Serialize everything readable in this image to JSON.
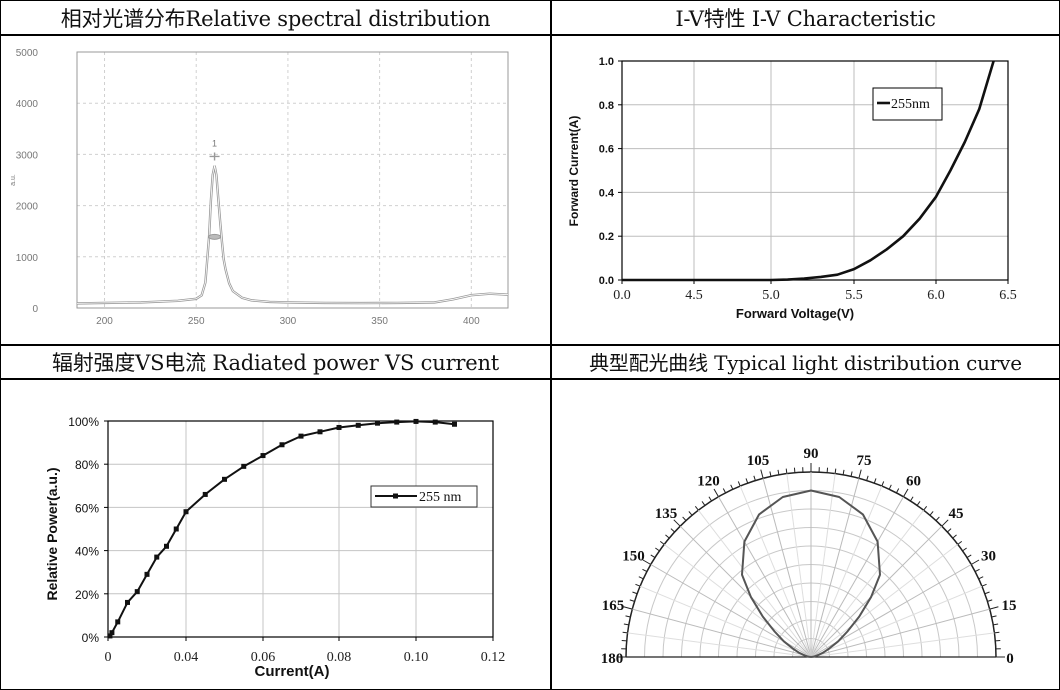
{
  "headers": {
    "spectral": "相对光谱分布Relative spectral distribution",
    "iv": "I-V特性 I-V Characteristic",
    "power": "辐射强度VS电流 Radiated power VS current",
    "polar": "典型配光曲线 Typical light distribution curve"
  },
  "chart_data": [
    {
      "type": "line",
      "ylabel": "a.u.",
      "xlim": [
        185,
        420
      ],
      "ylim": [
        0,
        5000
      ],
      "x_ticks": [
        200,
        250,
        300,
        350,
        400
      ],
      "y_ticks": [
        0,
        1000,
        2000,
        3000,
        4000,
        5000
      ],
      "annotation": "1",
      "grid": true,
      "series": [
        {
          "x": [
            185,
            200,
            220,
            240,
            250,
            253,
            255,
            257,
            258,
            259,
            260,
            261,
            262,
            263,
            264,
            265,
            266,
            268,
            270,
            275,
            280,
            290,
            300,
            320,
            340,
            360,
            380,
            390,
            400,
            410,
            420
          ],
          "values": [
            90,
            100,
            110,
            140,
            180,
            250,
            500,
            1400,
            2100,
            2600,
            2780,
            2600,
            2150,
            1700,
            1300,
            950,
            750,
            480,
            330,
            200,
            150,
            120,
            110,
            100,
            95,
            100,
            110,
            170,
            250,
            280,
            260
          ]
        }
      ]
    },
    {
      "type": "line",
      "xlabel": "Forward Voltage(V)",
      "ylabel": "Forward Current(A)",
      "xlim": [
        0,
        6.5
      ],
      "ylim": [
        0,
        1.0
      ],
      "x_ticks": [
        "0.0",
        "4.5",
        "5.0",
        "5.5",
        "6.0",
        "6.5"
      ],
      "y_ticks": [
        "0.0",
        "0.2",
        "0.4",
        "0.6",
        "0.8",
        "1.0"
      ],
      "legend_position": "top-right",
      "grid": true,
      "series": [
        {
          "name": "255nm",
          "x": [
            0,
            4.5,
            5.0,
            5.1,
            5.2,
            5.3,
            5.4,
            5.5,
            5.6,
            5.7,
            5.8,
            5.9,
            6.0,
            6.1,
            6.2,
            6.3,
            6.4
          ],
          "values": [
            0,
            0,
            0,
            0.002,
            0.007,
            0.014,
            0.024,
            0.05,
            0.09,
            0.14,
            0.2,
            0.28,
            0.38,
            0.5,
            0.63,
            0.78,
            1.0
          ]
        }
      ]
    },
    {
      "type": "line",
      "xlabel": "Current(A)",
      "ylabel": "Relative Power(a.u.)",
      "xlim": [
        0,
        0.12
      ],
      "ylim": [
        0,
        100
      ],
      "x_ticks": [
        "0",
        "0.04",
        "0.06",
        "0.08",
        "0.10",
        "0.12"
      ],
      "y_ticks": [
        "0%",
        "20%",
        "40%",
        "60%",
        "80%",
        "100%"
      ],
      "legend_position": "right",
      "grid": true,
      "series": [
        {
          "name": "255 nm",
          "x": [
            0.001,
            0.002,
            0.005,
            0.01,
            0.015,
            0.02,
            0.025,
            0.03,
            0.035,
            0.04,
            0.045,
            0.05,
            0.055,
            0.06,
            0.065,
            0.07,
            0.075,
            0.08,
            0.085,
            0.09,
            0.095,
            0.1,
            0.105,
            0.11
          ],
          "values": [
            0.5,
            2,
            7,
            16,
            21,
            29,
            37,
            42,
            50,
            58,
            66,
            73,
            79,
            84,
            89,
            93,
            95,
            97,
            98,
            99,
            99.5,
            99.8,
            99.5,
            98.5
          ]
        }
      ]
    },
    {
      "type": "polar",
      "angle_labels": [
        "0",
        "15",
        "30",
        "45",
        "60",
        "75",
        "90",
        "105",
        "120",
        "135",
        "150",
        "165",
        "180"
      ],
      "rings": 10,
      "series": [
        {
          "angles": [
            90,
            80,
            70,
            60,
            50,
            45,
            40,
            35,
            30,
            25,
            20,
            15,
            10,
            5,
            0
          ],
          "values": [
            0.9,
            0.878,
            0.82,
            0.72,
            0.58,
            0.46,
            0.34,
            0.24,
            0.17,
            0.11,
            0.07,
            0.04,
            0.02,
            0.01,
            0
          ],
          "symmetric": true
        }
      ]
    }
  ]
}
